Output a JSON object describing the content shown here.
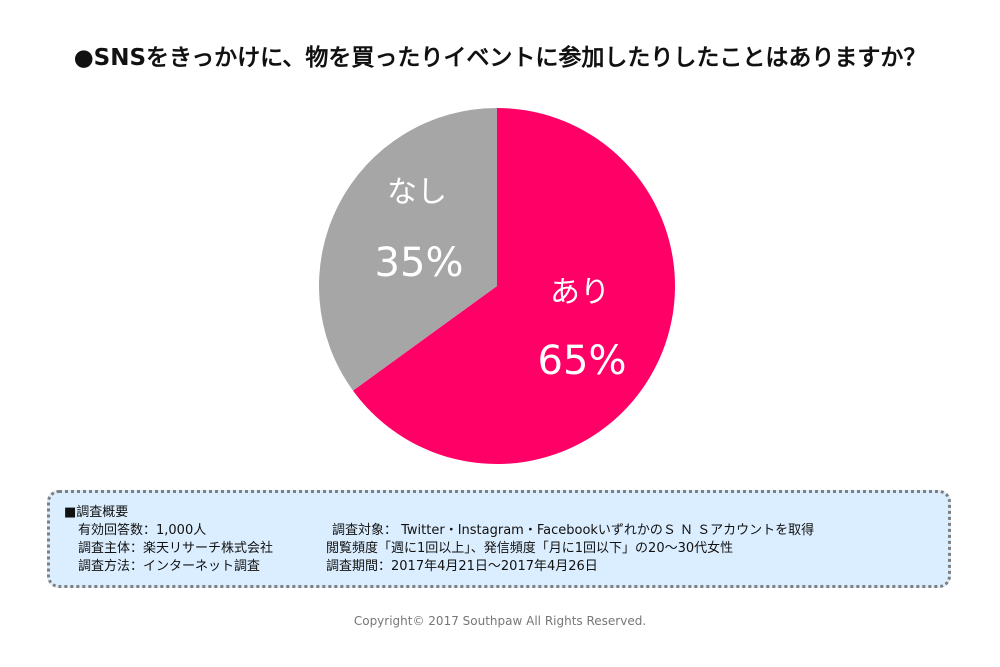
{
  "title": "●SNSをきっかけに、物を買ったりイベントに参加したりしたことはありますか？",
  "chart_data": {
    "type": "pie",
    "title": "●SNSをきっかけに、物を買ったりイベントに参加したりしたことはありますか？",
    "slices": [
      {
        "label": "あり",
        "value": 65,
        "value_label": "65%",
        "color": "#FF0066"
      },
      {
        "label": "なし",
        "value": 35,
        "value_label": "35%",
        "color": "#A6A6A6"
      }
    ]
  },
  "survey": {
    "heading": "■調査概要",
    "left": [
      "有効回答数：1,000人",
      "調査主体：楽天リサーチ株式会社",
      "調査方法：インターネット調査"
    ],
    "right": [
      "調査対象： Twitter・Instagram・FacebookいずれかのＳ Ｎ Ｓアカウントを取得",
      "閲覧頻度「週に1回以上」、発信頻度「月に1回以下」の20～30代女性",
      "調査期間：2017年4月21日～2017年4月26日"
    ]
  },
  "copyright": "Copyright© 2017 Southpaw All Rights Reserved."
}
